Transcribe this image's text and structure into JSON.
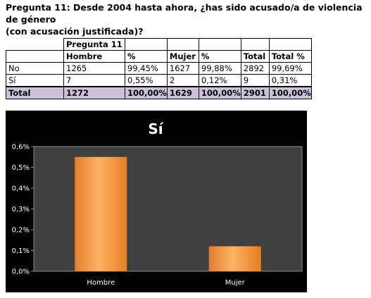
{
  "heading": {
    "line1": "Pregunta 11: Desde 2004 hasta ahora, ¿has sido acusado/a de violencia de género",
    "line2": "(con acusación justificada)?"
  },
  "table": {
    "group_header": "Pregunta 11",
    "columns": [
      "",
      "Hombre",
      "%",
      "Mujer",
      "%",
      "Total",
      "Total %"
    ],
    "rows": [
      [
        "No",
        "1265",
        "99,45%",
        "1627",
        "99,88%",
        "2892",
        "99,69%"
      ],
      [
        "Sí",
        "7",
        "0,55%",
        "2",
        "0,12%",
        "9",
        "0,31%"
      ],
      [
        "Total",
        "1272",
        "100,00%",
        "1629",
        "100,00%",
        "2901",
        "100,00%"
      ]
    ]
  },
  "chart_data": {
    "type": "bar",
    "title": "Sí",
    "categories": [
      "Hombre",
      "Mujer"
    ],
    "values": [
      0.55,
      0.12
    ],
    "ylim": [
      0,
      0.6
    ],
    "yticks": [
      "0,0%",
      "0,1%",
      "0,2%",
      "0,3%",
      "0,4%",
      "0,5%",
      "0,6%"
    ],
    "xlabel": "",
    "ylabel": "",
    "grid": false,
    "legend": "none",
    "colors": {
      "background": "#000000",
      "plot_background": "#404040",
      "bar": "#f79646",
      "text": "#ffffff"
    }
  }
}
